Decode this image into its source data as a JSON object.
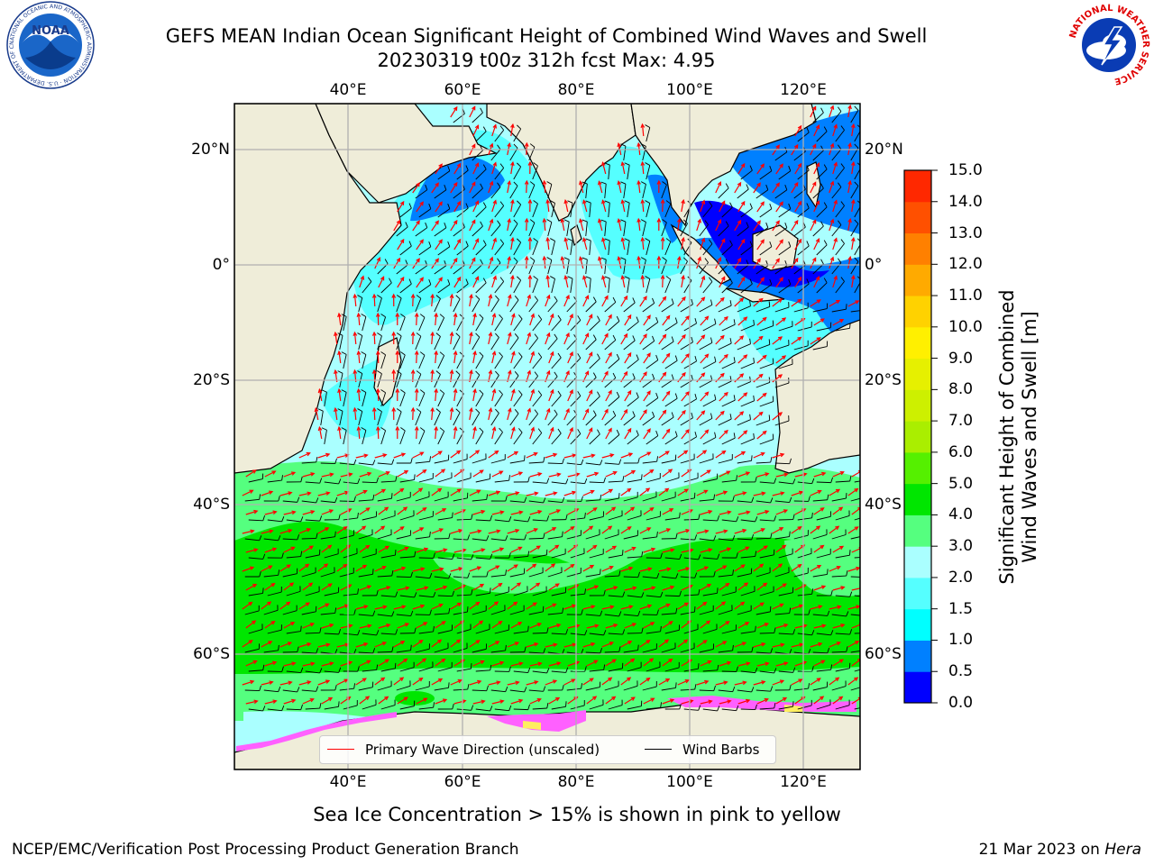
{
  "header": {
    "title_line1": "GEFS MEAN Indian Ocean Significant Height of Combined Wind Waves and Swell",
    "title_line2": "20230319 t00z 312h fcst   Max: 4.95"
  },
  "map": {
    "lon_ticks": [
      "40°E",
      "60°E",
      "80°E",
      "100°E",
      "120°E"
    ],
    "lat_ticks": [
      "20°N",
      "0°",
      "20°S",
      "40°S",
      "60°S"
    ],
    "lon_range": [
      20,
      129
    ],
    "lat_range": [
      -78,
      28
    ],
    "ocean_color": "#aaffff",
    "land_color": "#efedd9",
    "wave_arrow_color": "#ff0000",
    "wind_barb_color": "#000000"
  },
  "colorbar": {
    "label": "Significant Height of Combined Wind Waves and Swell [m]",
    "label_line1": "Significant Height of Combined",
    "label_line2": "Wind Waves and Swell [m]",
    "ticks": [
      "0.0",
      "0.5",
      "1.0",
      "1.5",
      "2.0",
      "3.0",
      "4.0",
      "5.0",
      "6.0",
      "7.0",
      "8.0",
      "9.0",
      "10.0",
      "11.0",
      "12.0",
      "13.0",
      "14.0",
      "15.0"
    ],
    "colors": [
      "#0000ff",
      "#0080ff",
      "#00ffff",
      "#55ffff",
      "#aaffff",
      "#55ff7f",
      "#00e600",
      "#55f000",
      "#aaee00",
      "#cdf000",
      "#e6f000",
      "#fff000",
      "#ffd200",
      "#ffaa00",
      "#ff8000",
      "#ff5000",
      "#ff2800",
      "#ff0000"
    ]
  },
  "legend": {
    "primary_wave": "Primary Wave Direction (unscaled)",
    "wind_barbs": "Wind Barbs"
  },
  "note": "Sea Ice Concentration > 15% is shown in pink to yellow",
  "footer": {
    "left": "NCEP/EMC/Verification Post Processing Product Generation Branch",
    "date": "21 Mar 2023 on",
    "machine": "Hera"
  },
  "logos": {
    "noaa_text": "NOAA",
    "noaa_ring": "NATIONAL OCEANIC AND ATMOSPHERIC ADMINISTRATION · U.S. DEPARTMENT OF COMMERCE",
    "nws_ring": "NATIONAL WEATHER SERVICE"
  }
}
